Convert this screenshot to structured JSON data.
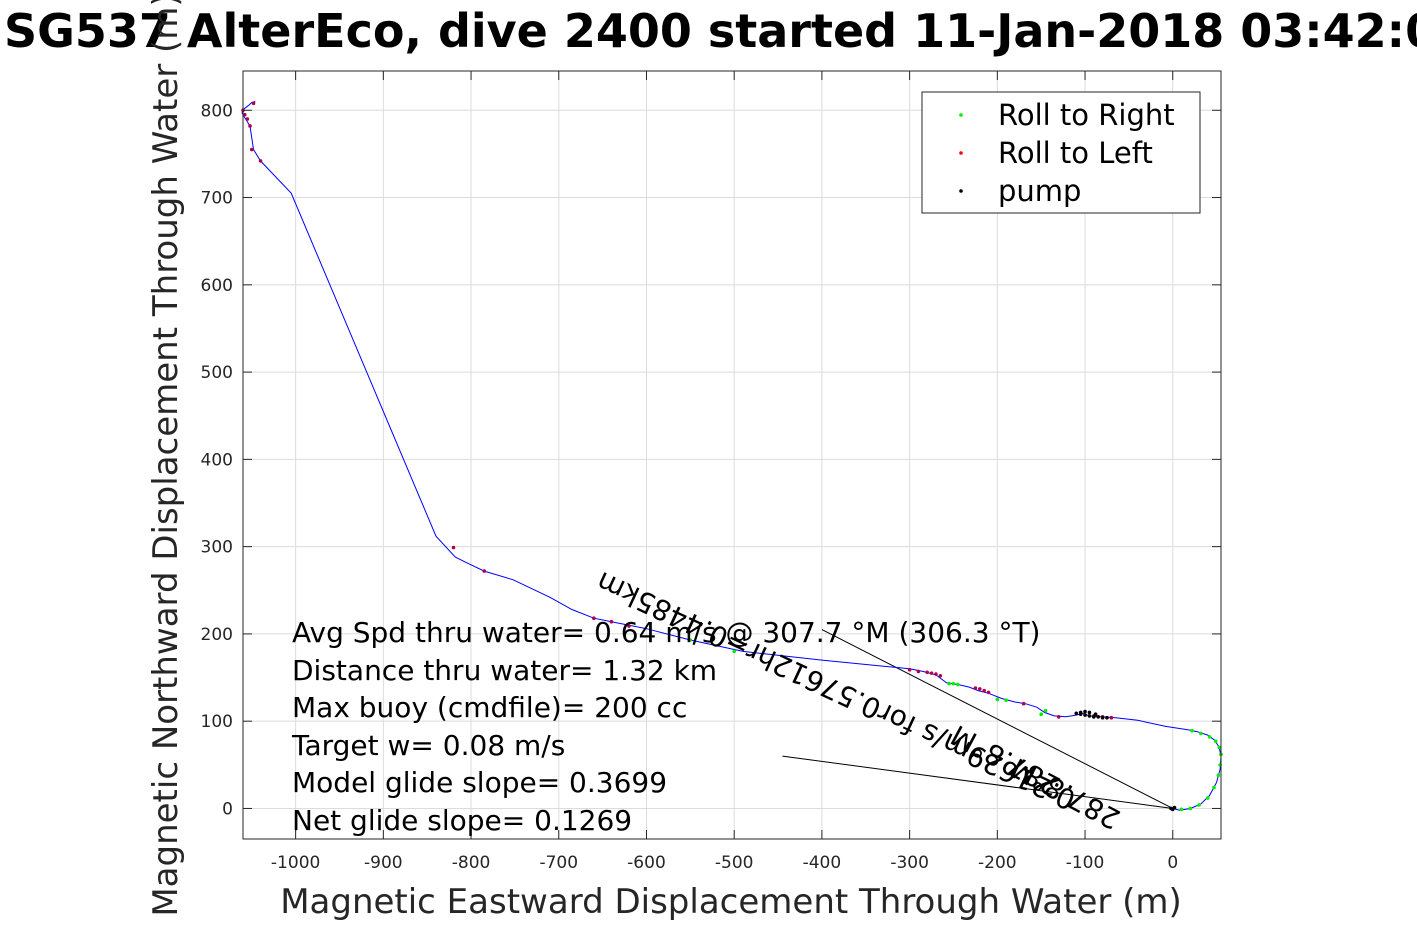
{
  "chart_data": {
    "type": "line",
    "title": "SG537 AlterEco, dive 2400 started 11-Jan-2018 03:42:0",
    "xlabel": "Magnetic Eastward Displacement Through Water (m)",
    "ylabel": "Magnetic Northward Displacement Through Water (m)",
    "xlim": [
      -1060,
      55
    ],
    "ylim": [
      -35,
      845
    ],
    "xticks": [
      -1000,
      -900,
      -800,
      -700,
      -600,
      -500,
      -400,
      -300,
      -200,
      -100,
      0
    ],
    "yticks": [
      0,
      100,
      200,
      300,
      400,
      500,
      600,
      700,
      800
    ],
    "xtick_labels": [
      "-1000",
      "-900",
      "-800",
      "-700",
      "-600",
      "-500",
      "-400",
      "-300",
      "-200",
      "-100",
      "0"
    ],
    "ytick_labels": [
      "0",
      "100",
      "200",
      "300",
      "400",
      "500",
      "600",
      "700",
      "800"
    ],
    "grid": true,
    "legend_position": "top-right",
    "colors": {
      "track": "#0000ff",
      "roll_right": "#00ee00",
      "roll_left": "#ff0000",
      "pump": "#000000",
      "mixed_marker": "#b0004a",
      "axes": "#262626",
      "grid": "#dcdcdc"
    },
    "legend": [
      {
        "label": "Roll to Right",
        "color": "#00ee00"
      },
      {
        "label": "Roll to Left",
        "color": "#ff0000"
      },
      {
        "label": "pump",
        "color": "#000000"
      }
    ],
    "track": {
      "x": [
        0,
        8,
        20,
        32,
        42,
        50,
        54,
        55,
        53,
        48,
        40,
        28,
        18,
        -8,
        -40,
        -65,
        -82,
        -95,
        -103,
        -110,
        -122,
        -135,
        -146,
        -155,
        -168,
        -180,
        -195,
        -210,
        -222,
        -232,
        -245,
        -258,
        -270,
        -285,
        -300,
        -400,
        -490,
        -550,
        -600,
        -640,
        -660,
        -685,
        -710,
        -752,
        -785,
        -806,
        -818,
        -840,
        -1005,
        -1040,
        -1048,
        -1052,
        -1057,
        -1060,
        -1061,
        -1060,
        -1057,
        -1053,
        -1050,
        -1046
      ],
      "y": [
        0,
        -2,
        0,
        5,
        15,
        30,
        45,
        60,
        70,
        78,
        84,
        88,
        90,
        94,
        101,
        104,
        105,
        106,
        109,
        107,
        105,
        106,
        110,
        116,
        120,
        122,
        126,
        132,
        135,
        139,
        142,
        144,
        153,
        157,
        160,
        170,
        180,
        193,
        206,
        214,
        218,
        228,
        242,
        262,
        272,
        282,
        288,
        312,
        705,
        742,
        755,
        782,
        790,
        795,
        797,
        801,
        803,
        806,
        809,
        810
      ]
    },
    "markers": {
      "roll_right": {
        "x": [
          10,
          20,
          30,
          40,
          47,
          52,
          54,
          55,
          53,
          49,
          42,
          32,
          22,
          -145,
          -150,
          -190,
          -200,
          -245,
          -250,
          -255,
          -500,
          -550
        ],
        "y": [
          -1,
          0,
          4,
          12,
          24,
          38,
          50,
          62,
          70,
          77,
          82,
          86,
          89,
          112,
          108,
          124,
          125,
          142,
          143,
          143,
          180,
          193
        ]
      },
      "roll_left": {
        "x": [
          -70,
          -80,
          -90,
          -130,
          -170,
          -210,
          -215,
          -220,
          -225,
          -265,
          -270,
          -275,
          -280,
          -290,
          -300,
          -620,
          -640,
          -660,
          -785,
          -820,
          -1040,
          -1050,
          -1052,
          -1055,
          -1058,
          -1060,
          -1048
        ],
        "y": [
          104,
          105,
          106,
          105,
          120,
          133,
          135,
          137,
          138,
          152,
          154,
          155,
          156,
          157,
          159,
          209,
          214,
          218,
          272,
          299,
          742,
          755,
          782,
          790,
          795,
          800,
          808
        ]
      },
      "pump": {
        "x": [
          -2,
          0,
          2,
          -75,
          -80,
          -85,
          -90,
          -95,
          -100,
          -105,
          -110,
          -105,
          -100,
          -95,
          -88
        ],
        "y": [
          0,
          -1,
          1,
          104,
          104,
          105,
          105,
          106,
          107,
          108,
          109,
          110,
          111,
          110,
          108
        ]
      }
    },
    "reference_lines": [
      {
        "x": [
          0,
          -400
        ],
        "y": [
          0,
          205
        ]
      },
      {
        "x": [
          0,
          -445
        ],
        "y": [
          0,
          60
        ]
      }
    ],
    "annotations": [
      "Avg Spd thru water= 0.64 m/s @ 307.7 °M (306.3 °T)",
      "Distance thru water=  1.32 km",
      "Max buoy (cmdfile)= 200 cc",
      "Target w= 0.08 m/s",
      "Model glide slope= 0.3699",
      "Net glide slope= 0.1269"
    ],
    "current_labels": [
      "287.8°M",
      "0.21629m/s for0.57612hr=0.4485km",
      "287.8°M"
    ]
  }
}
